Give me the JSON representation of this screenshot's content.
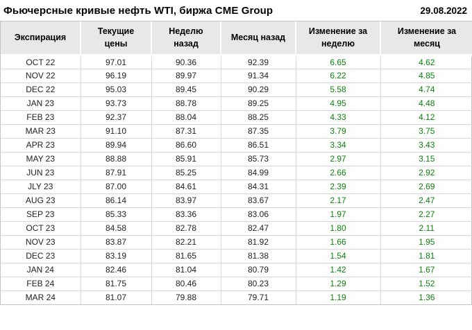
{
  "header": {
    "title": "Фьючерсные кривые нефть WTI, биржа CME Group",
    "date": "29.08.2022"
  },
  "colors": {
    "positive_change": "#0c800c",
    "header_background": "#e8e8e8",
    "grid_border": "#d8d8d8",
    "outer_border": "#c3c3c3"
  },
  "chart_data": {
    "type": "table",
    "title": "Фьючерсные кривые нефть WTI, биржа CME Group",
    "date": "29.08.2022",
    "columns": [
      "Экспирация",
      "Текущие цены",
      "Неделю назад",
      "Месяц назад",
      "Изменение за неделю",
      "Изменение за месяц"
    ],
    "change_columns_color": "green",
    "rows": [
      [
        "OCT 22",
        "97.01",
        "90.36",
        "92.39",
        "6.65",
        "4.62"
      ],
      [
        "NOV 22",
        "96.19",
        "89.97",
        "91.34",
        "6.22",
        "4.85"
      ],
      [
        "DEC 22",
        "95.03",
        "89.45",
        "90.29",
        "5.58",
        "4.74"
      ],
      [
        "JAN 23",
        "93.73",
        "88.78",
        "89.25",
        "4.95",
        "4.48"
      ],
      [
        "FEB 23",
        "92.37",
        "88.04",
        "88.25",
        "4.33",
        "4.12"
      ],
      [
        "MAR 23",
        "91.10",
        "87.31",
        "87.35",
        "3.79",
        "3.75"
      ],
      [
        "APR 23",
        "89.94",
        "86.60",
        "86.51",
        "3.34",
        "3.43"
      ],
      [
        "MAY 23",
        "88.88",
        "85.91",
        "85.73",
        "2.97",
        "3.15"
      ],
      [
        "JUN 23",
        "87.91",
        "85.25",
        "84.99",
        "2.66",
        "2.92"
      ],
      [
        "JLY 23",
        "87.00",
        "84.61",
        "84.31",
        "2.39",
        "2.69"
      ],
      [
        "AUG 23",
        "86.14",
        "83.97",
        "83.67",
        "2.17",
        "2.47"
      ],
      [
        "SEP 23",
        "85.33",
        "83.36",
        "83.06",
        "1.97",
        "2.27"
      ],
      [
        "OCT 23",
        "84.58",
        "82.78",
        "82.47",
        "1.80",
        "2.11"
      ],
      [
        "NOV 23",
        "83.87",
        "82.21",
        "81.92",
        "1.66",
        "1.95"
      ],
      [
        "DEC 23",
        "83.19",
        "81.65",
        "81.38",
        "1.54",
        "1.81"
      ],
      [
        "JAN 24",
        "82.46",
        "81.04",
        "80.79",
        "1.42",
        "1.67"
      ],
      [
        "FEB 24",
        "81.75",
        "80.46",
        "80.23",
        "1.29",
        "1.52"
      ],
      [
        "MAR 24",
        "81.07",
        "79.88",
        "79.71",
        "1.19",
        "1.36"
      ]
    ]
  }
}
